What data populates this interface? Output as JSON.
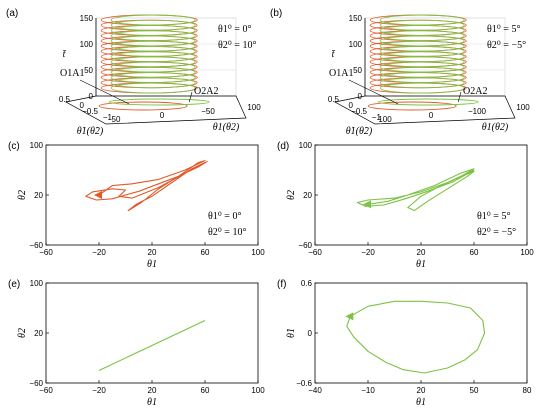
{
  "colors": {
    "green": "#7dc244",
    "red": "#e05a2b",
    "dark_red": "#c0392b",
    "axis": "#000000",
    "grid": "#d9d9d9"
  },
  "chart_data": [
    {
      "id": "a",
      "type": "line",
      "panel_label": "(a)",
      "xlabel": "θ1(θ2)",
      "ylabel": "θ̇1(θ̇2)",
      "zlabel": "t̄",
      "z_ticks": [
        "0",
        "50",
        "100",
        "150"
      ],
      "x_ticks": [
        "50",
        "0",
        "−50",
        "100"
      ],
      "y_ticks": [
        "0.5",
        "0",
        "−0.5",
        "−1"
      ],
      "annotations": {
        "line1": "θ1⁰ = 0°",
        "line2": "θ2⁰ = 10°",
        "o1": "O1A1",
        "o2": "O2A2"
      },
      "series": [
        {
          "label_ref": "O1A1",
          "color": "red",
          "kind": "helix",
          "z_range": [
            0,
            150
          ]
        },
        {
          "label_ref": "O2A2",
          "color": "green",
          "kind": "helix",
          "z_range": [
            0,
            150
          ]
        }
      ]
    },
    {
      "id": "b",
      "type": "line",
      "panel_label": "(b)",
      "xlabel": "θ1(θ2)",
      "ylabel": "θ̇1(θ̇2)",
      "zlabel": "t̄",
      "z_ticks": [
        "0",
        "50",
        "100",
        "150"
      ],
      "x_ticks": [
        "100",
        "0",
        "−100",
        "100"
      ],
      "y_ticks": [
        "0.5",
        "0",
        "−0.5",
        "−1"
      ],
      "annotations": {
        "line1": "θ1⁰ = 5°",
        "line2": "θ2⁰ = −5°",
        "o1": "O1A1",
        "o2": "O2A2"
      },
      "series": [
        {
          "label_ref": "O1A1",
          "color": "red",
          "kind": "helix",
          "z_range": [
            0,
            150
          ]
        },
        {
          "label_ref": "O2A2",
          "color": "green",
          "kind": "helix",
          "z_range": [
            0,
            150
          ]
        }
      ]
    },
    {
      "id": "c",
      "type": "line",
      "panel_label": "(c)",
      "xlabel": "θ1",
      "ylabel": "θ2",
      "xlim": [
        -60,
        100
      ],
      "ylim": [
        -60,
        100
      ],
      "x_ticks": [
        "−60",
        "−20",
        "20",
        "60",
        "100"
      ],
      "y_ticks": [
        "−60",
        "20",
        "100"
      ],
      "annotations": {
        "line1": "θ1⁰ = 0°",
        "line2": "θ2⁰ = 10°"
      },
      "color": "red",
      "points": [
        [
          -20,
          20
        ],
        [
          -10,
          35
        ],
        [
          5,
          38
        ],
        [
          25,
          45
        ],
        [
          45,
          60
        ],
        [
          60,
          75
        ],
        [
          55,
          72
        ],
        [
          40,
          50
        ],
        [
          25,
          30
        ],
        [
          12,
          8
        ],
        [
          2,
          -5
        ],
        [
          8,
          5
        ],
        [
          20,
          18
        ],
        [
          35,
          40
        ],
        [
          50,
          62
        ],
        [
          60,
          72
        ],
        [
          45,
          55
        ],
        [
          25,
          32
        ],
        [
          5,
          15
        ],
        [
          -5,
          18
        ],
        [
          0,
          28
        ],
        [
          -10,
          30
        ],
        [
          -25,
          25
        ],
        [
          -30,
          18
        ],
        [
          -22,
          12
        ],
        [
          -10,
          14
        ],
        [
          0,
          20
        ],
        [
          10,
          26
        ],
        [
          25,
          38
        ],
        [
          40,
          50
        ],
        [
          55,
          65
        ],
        [
          62,
          74
        ]
      ]
    },
    {
      "id": "d",
      "type": "line",
      "panel_label": "(d)",
      "xlabel": "θ1",
      "ylabel": "θ2",
      "xlim": [
        -60,
        100
      ],
      "ylim": [
        -60,
        100
      ],
      "x_ticks": [
        "−60",
        "−20",
        "20",
        "60",
        "100"
      ],
      "y_ticks": [
        "−60",
        "20",
        "100"
      ],
      "annotations": {
        "line1": "θ1⁰ = 5°",
        "line2": "θ2⁰ = −5°"
      },
      "color": "green",
      "points": [
        [
          -20,
          5
        ],
        [
          -5,
          10
        ],
        [
          10,
          20
        ],
        [
          30,
          35
        ],
        [
          50,
          55
        ],
        [
          60,
          62
        ],
        [
          50,
          50
        ],
        [
          35,
          35
        ],
        [
          20,
          18
        ],
        [
          10,
          0
        ],
        [
          15,
          -5
        ],
        [
          25,
          10
        ],
        [
          40,
          30
        ],
        [
          55,
          50
        ],
        [
          60,
          58
        ],
        [
          40,
          40
        ],
        [
          20,
          25
        ],
        [
          0,
          15
        ],
        [
          -20,
          12
        ],
        [
          -28,
          8
        ],
        [
          -22,
          2
        ],
        [
          -8,
          4
        ],
        [
          8,
          14
        ],
        [
          25,
          26
        ],
        [
          45,
          42
        ],
        [
          60,
          60
        ]
      ]
    },
    {
      "id": "e",
      "type": "line",
      "panel_label": "(e)",
      "xlabel": "θ1",
      "ylabel": "θ2",
      "xlim": [
        -60,
        100
      ],
      "ylim": [
        -60,
        100
      ],
      "x_ticks": [
        "−60",
        "−20",
        "20",
        "60",
        "100"
      ],
      "y_ticks": [
        "−60",
        "20",
        "100"
      ],
      "color": "green",
      "points": [
        [
          -20,
          -40
        ],
        [
          60,
          40
        ]
      ]
    },
    {
      "id": "f",
      "type": "line",
      "panel_label": "(f)",
      "xlabel": "θ1",
      "ylabel": "θ̇1",
      "xlim": [
        -40,
        80
      ],
      "ylim": [
        -0.6,
        0.6
      ],
      "x_ticks": [
        "−40",
        "−10",
        "20",
        "50",
        "80"
      ],
      "y_ticks": [
        "−0.6",
        "0",
        "0.6"
      ],
      "color": "green",
      "points": [
        [
          -20,
          0.2
        ],
        [
          -10,
          0.32
        ],
        [
          5,
          0.38
        ],
        [
          20,
          0.38
        ],
        [
          35,
          0.36
        ],
        [
          48,
          0.3
        ],
        [
          55,
          0.15
        ],
        [
          56,
          0
        ],
        [
          52,
          -0.2
        ],
        [
          45,
          -0.32
        ],
        [
          35,
          -0.42
        ],
        [
          22,
          -0.48
        ],
        [
          10,
          -0.44
        ],
        [
          0,
          -0.35
        ],
        [
          -10,
          -0.22
        ],
        [
          -18,
          -0.05
        ],
        [
          -22,
          0.08
        ],
        [
          -20,
          0.2
        ]
      ]
    }
  ]
}
